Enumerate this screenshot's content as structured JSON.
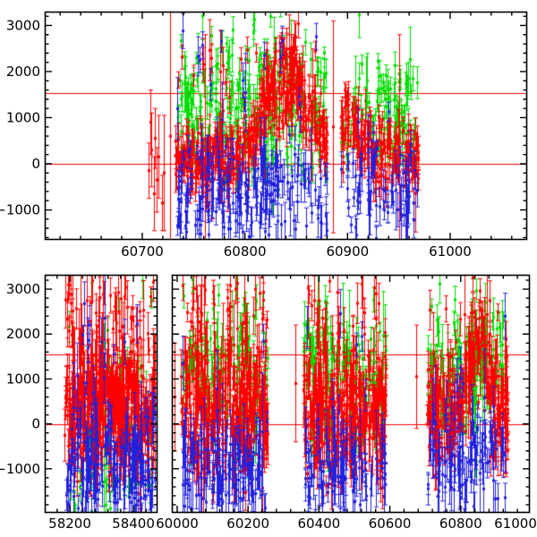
{
  "figure": {
    "background": "#ffffff",
    "frame_color": "#000000",
    "tick_label_color": "#000000",
    "reference_line_color": "#ff0000",
    "series_colors": {
      "red": "#ff0000",
      "green": "#00dd00",
      "blue": "#2222dd"
    }
  },
  "chart_data": [
    {
      "type": "scatter",
      "title": "",
      "panel": "top",
      "ylim": [
        -1650,
        3300
      ],
      "y_major_ticks": [
        -1000,
        0,
        1000,
        2000,
        3000
      ],
      "y_tick_labels": [
        "−1000",
        "0",
        "1000",
        "2000",
        "3000"
      ],
      "y_minor_step": 200,
      "reference_lines_y": [
        0,
        1540
      ],
      "sub_panels": [
        {
          "xlim": [
            60605,
            61075
          ],
          "x_major_ticks": [
            60700,
            60800,
            60900,
            61000
          ],
          "x_tick_labels": [
            "60700",
            "60800",
            "60900",
            "61000"
          ],
          "x_minor_step": 20
        }
      ],
      "series": [
        {
          "name": "band-green",
          "color_key": "green",
          "seed": 101,
          "clusters": [
            {
              "sub": 0,
              "x0": 60733,
              "x1": 60880,
              "n": 270,
              "yc": 1300,
              "ysd": 780,
              "emin": 120,
              "emax": 380
            },
            {
              "sub": 0,
              "x0": 60893,
              "x1": 60968,
              "n": 95,
              "yc": 1050,
              "ysd": 640,
              "emin": 120,
              "emax": 380
            }
          ],
          "points": []
        },
        {
          "name": "band-red",
          "color_key": "red",
          "seed": 102,
          "clusters": [
            {
              "sub": 0,
              "x0": 60731,
              "x1": 60880,
              "n": 440,
              "yc": 150,
              "ysd": 300,
              "emin": 120,
              "emax": 420,
              "peak": {
                "x": 60841,
                "w": 21,
                "amp": 2450
              },
              "spike_frac": 0.04,
              "spike_y": [
                1400,
                2500
              ]
            },
            {
              "sub": 0,
              "x0": 60893,
              "x1": 60970,
              "n": 175,
              "yc": 250,
              "ysd": 330,
              "emin": 120,
              "emax": 400,
              "peak": {
                "x": 60901,
                "w": 10,
                "amp": 1000
              }
            }
          ],
          "points": [
            {
              "sub": 0,
              "x": 60706,
              "y": -150,
              "e": 600
            },
            {
              "sub": 0,
              "x": 60708,
              "y": 900,
              "e": 700
            },
            {
              "sub": 0,
              "x": 60709,
              "y": 300,
              "e": 800
            },
            {
              "sub": 0,
              "x": 60711,
              "y": -650,
              "e": 800
            },
            {
              "sub": 0,
              "x": 60712,
              "y": 550,
              "e": 650
            },
            {
              "sub": 0,
              "x": 60714,
              "y": -350,
              "e": 700
            },
            {
              "sub": 0,
              "x": 60716,
              "y": 150,
              "e": 900
            },
            {
              "sub": 0,
              "x": 60719,
              "y": -850,
              "e": 600
            },
            {
              "sub": 0,
              "x": 60721,
              "y": -200,
              "e": 1250
            },
            {
              "sub": 0,
              "x": 60727,
              "y": 600,
              "e": 2700
            },
            {
              "sub": 0,
              "x": 60761,
              "y": 300,
              "e": 2500
            },
            {
              "sub": 0,
              "x": 60886,
              "y": 800,
              "e": 2300
            },
            {
              "sub": 0,
              "x": 60950,
              "y": 500,
              "e": 2300
            }
          ]
        },
        {
          "name": "band-blue",
          "color_key": "blue",
          "seed": 103,
          "clusters": [
            {
              "sub": 0,
              "x0": 60733,
              "x1": 60880,
              "n": 215,
              "yc": -650,
              "ysd": 560,
              "emin": 150,
              "emax": 450,
              "spike_frac": 0.07,
              "spike_y": [
                900,
                2900
              ]
            },
            {
              "sub": 0,
              "x0": 60893,
              "x1": 60968,
              "n": 70,
              "yc": -550,
              "ysd": 520,
              "emin": 150,
              "emax": 450,
              "spike_frac": 0.05,
              "spike_y": [
                800,
                2400
              ]
            }
          ],
          "points": []
        }
      ]
    },
    {
      "type": "scatter",
      "title": "",
      "panel": "bottom",
      "ylim": [
        -1980,
        3320
      ],
      "y_major_ticks": [
        -1000,
        0,
        1000,
        2000,
        3000
      ],
      "y_tick_labels": [
        "−1000",
        "0",
        "1000",
        "2000",
        "3000"
      ],
      "y_minor_step": 200,
      "reference_lines_y": [
        0,
        1540
      ],
      "sub_panels": [
        {
          "xlim": [
            58121,
            58476
          ],
          "x_major_ticks": [
            58200,
            58400
          ],
          "x_tick_labels": [
            "58200",
            "58400"
          ],
          "x_minor_step": 40
        },
        {
          "xlim": [
            59985,
            60995
          ],
          "x_major_ticks": [
            60000,
            60200,
            60400,
            60600,
            60800,
            61000
          ],
          "x_tick_labels": [
            "60000",
            "60200",
            "60400",
            "60600",
            "60800",
            "61000"
          ],
          "x_minor_step": 40
        }
      ],
      "series": [
        {
          "name": "band-green",
          "color_key": "green",
          "seed": 201,
          "clusters": [
            {
              "sub": 0,
              "x0": 58185,
              "x1": 58465,
              "n": 80,
              "yc": 0,
              "ysd": 1400,
              "emin": 150,
              "emax": 400
            },
            {
              "sub": 1,
              "x0": 60015,
              "x1": 60255,
              "n": 150,
              "yc": 1200,
              "ysd": 800,
              "emin": 150,
              "emax": 450
            },
            {
              "sub": 1,
              "x0": 60355,
              "x1": 60590,
              "n": 130,
              "yc": 1200,
              "ysd": 800,
              "emin": 150,
              "emax": 450
            },
            {
              "sub": 1,
              "x0": 60705,
              "x1": 60930,
              "n": 130,
              "yc": 1250,
              "ysd": 800,
              "emin": 150,
              "emax": 450
            }
          ],
          "points": []
        },
        {
          "name": "band-red",
          "color_key": "red",
          "seed": 202,
          "clusters": [
            {
              "sub": 0,
              "x0": 58183,
              "x1": 58468,
              "n": 430,
              "yc": 350,
              "ysd": 650,
              "emin": 200,
              "emax": 700,
              "spike_frac": 0.1,
              "spike_y": [
                1800,
                3200
              ]
            },
            {
              "sub": 1,
              "x0": 60012,
              "x1": 60255,
              "n": 340,
              "yc": 300,
              "ysd": 700,
              "emin": 180,
              "emax": 600,
              "spike_frac": 0.12,
              "spike_y": [
                1500,
                3200
              ]
            },
            {
              "sub": 1,
              "x0": 60355,
              "x1": 60590,
              "n": 300,
              "yc": 300,
              "ysd": 700,
              "emin": 180,
              "emax": 600,
              "spike_frac": 0.12,
              "spike_y": [
                1500,
                3200
              ]
            },
            {
              "sub": 1,
              "x0": 60705,
              "x1": 60935,
              "n": 290,
              "yc": 250,
              "ysd": 500,
              "emin": 150,
              "emax": 500,
              "peak": {
                "x": 60845,
                "w": 25,
                "amp": 2300
              },
              "spike_frac": 0.06,
              "spike_y": [
                1500,
                2800
              ]
            }
          ],
          "points": [
            {
              "sub": 1,
              "x": 59993,
              "y": 600,
              "e": 1200
            },
            {
              "sub": 1,
              "x": 60010,
              "y": 1050,
              "e": 600
            },
            {
              "sub": 1,
              "x": 60333,
              "y": 900,
              "e": 1300
            },
            {
              "sub": 1,
              "x": 60675,
              "y": 1050,
              "e": 1150
            }
          ]
        },
        {
          "name": "band-blue",
          "color_key": "blue",
          "seed": 203,
          "clusters": [
            {
              "sub": 0,
              "x0": 58185,
              "x1": 58468,
              "n": 175,
              "yc": -1000,
              "ysd": 650,
              "emin": 200,
              "emax": 600,
              "spike_frac": 0.05,
              "spike_y": [
                1000,
                2800
              ]
            },
            {
              "sub": 1,
              "x0": 60015,
              "x1": 60255,
              "n": 120,
              "yc": -1000,
              "ysd": 650,
              "emin": 200,
              "emax": 600,
              "spike_frac": 0.05,
              "spike_y": [
                1000,
                2600
              ]
            },
            {
              "sub": 1,
              "x0": 60355,
              "x1": 60590,
              "n": 105,
              "yc": -1000,
              "ysd": 650,
              "emin": 200,
              "emax": 600,
              "spike_frac": 0.05,
              "spike_y": [
                1000,
                2600
              ]
            },
            {
              "sub": 1,
              "x0": 60705,
              "x1": 60930,
              "n": 105,
              "yc": -800,
              "ysd": 650,
              "emin": 200,
              "emax": 600,
              "spike_frac": 0.06,
              "spike_y": [
                1000,
                2800
              ]
            }
          ],
          "points": []
        }
      ]
    }
  ]
}
